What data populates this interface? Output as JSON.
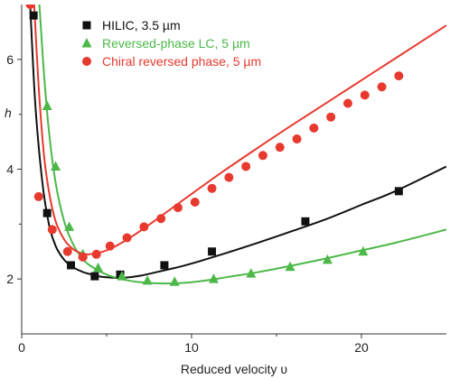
{
  "chart_data": {
    "type": "scatter",
    "title": "",
    "xlabel": "Reduced velocity υ",
    "ylabel": "h",
    "xlim": [
      0,
      25
    ],
    "ylim": [
      1,
      7
    ],
    "x_ticks": [
      0,
      10,
      20
    ],
    "x_tick_labels": [
      "0",
      "10",
      "20"
    ],
    "y_ticks": [
      2,
      4,
      6
    ],
    "y_tick_labels": [
      "2",
      "4",
      "6"
    ],
    "grid": false,
    "legend_position": "top-center",
    "series": [
      {
        "name": "HILIC, 3.5 µm",
        "marker": "square",
        "color": "#111111",
        "x": [
          0.7,
          1.5,
          2.9,
          4.3,
          5.8,
          8.4,
          11.2,
          16.7,
          22.2
        ],
        "y": [
          6.8,
          3.2,
          2.25,
          2.05,
          2.08,
          2.25,
          2.5,
          3.05,
          3.6
        ],
        "fit_x": [
          0.5,
          0.8,
          1.2,
          1.6,
          2.0,
          2.5,
          3.0,
          3.5,
          4.0,
          4.5,
          5.0,
          5.5,
          6.0,
          7.0,
          8.0,
          9.0,
          10.0,
          12.0,
          14.0,
          16.0,
          18.0,
          20.0,
          22.0,
          25.0
        ],
        "fit_y": [
          7.0,
          5.2,
          3.8,
          3.0,
          2.6,
          2.35,
          2.22,
          2.14,
          2.09,
          2.05,
          2.03,
          2.02,
          2.02,
          2.06,
          2.13,
          2.2,
          2.28,
          2.47,
          2.67,
          2.88,
          3.1,
          3.35,
          3.6,
          4.05
        ]
      },
      {
        "name": "Reversed-phase LC, 5 µm",
        "marker": "triangle",
        "color": "#4cb848",
        "x": [
          1.5,
          2.0,
          2.8,
          3.6,
          4.5,
          5.9,
          7.4,
          9.0,
          11.3,
          13.5,
          15.8,
          18.0,
          20.1
        ],
        "y": [
          5.15,
          4.05,
          2.95,
          2.45,
          2.2,
          2.05,
          1.97,
          1.95,
          2.0,
          2.1,
          2.22,
          2.35,
          2.5
        ],
        "fit_x": [
          1.0,
          1.3,
          1.6,
          2.0,
          2.5,
          3.0,
          3.5,
          4.0,
          5.0,
          6.0,
          7.0,
          8.0,
          9.0,
          10.0,
          11.0,
          12.0,
          14.0,
          16.0,
          18.0,
          20.0,
          22.0,
          25.0
        ],
        "fit_y": [
          7.2,
          5.8,
          4.7,
          3.75,
          3.05,
          2.65,
          2.4,
          2.25,
          2.08,
          1.99,
          1.94,
          1.92,
          1.92,
          1.94,
          1.98,
          2.03,
          2.13,
          2.25,
          2.38,
          2.52,
          2.66,
          2.9
        ]
      },
      {
        "name": "Chiral reversed phase, 5 µm",
        "marker": "circle",
        "color": "#e8392e",
        "x": [
          0.5,
          1.0,
          1.8,
          2.7,
          3.6,
          4.4,
          5.2,
          6.2,
          7.2,
          8.2,
          9.2,
          10.2,
          11.2,
          12.2,
          13.2,
          14.2,
          15.2,
          16.2,
          17.2,
          18.2,
          19.2,
          20.2,
          21.2,
          22.2
        ],
        "y": [
          7.0,
          3.5,
          2.9,
          2.5,
          2.4,
          2.45,
          2.6,
          2.75,
          2.95,
          3.1,
          3.3,
          3.4,
          3.65,
          3.85,
          4.05,
          4.25,
          4.4,
          4.55,
          4.75,
          4.95,
          5.2,
          5.35,
          5.5,
          5.7
        ],
        "fit_x": [
          0.7,
          1.0,
          1.3,
          1.6,
          2.0,
          2.5,
          3.0,
          3.5,
          4.0,
          5.0,
          6.0,
          7.0,
          8.0,
          10.0,
          12.0,
          14.0,
          16.0,
          18.0,
          20.0,
          22.0,
          25.0
        ],
        "fit_y": [
          7.2,
          5.5,
          4.3,
          3.6,
          3.05,
          2.72,
          2.55,
          2.47,
          2.45,
          2.52,
          2.68,
          2.88,
          3.1,
          3.55,
          3.99,
          4.41,
          4.82,
          5.22,
          5.62,
          6.02,
          6.62
        ]
      }
    ]
  }
}
